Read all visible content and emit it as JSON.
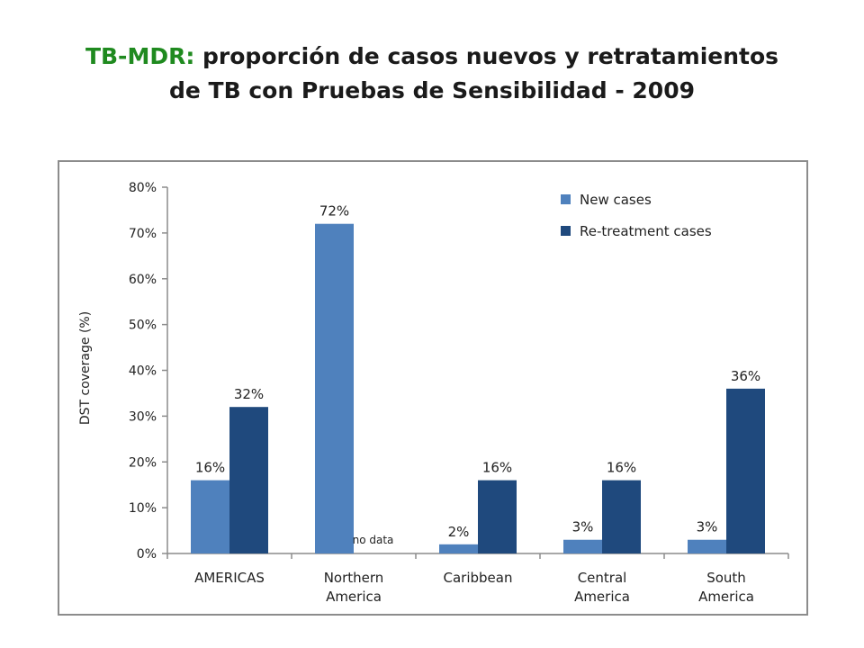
{
  "title": {
    "prefix": "TB-MDR:",
    "line1": " proporción de casos nuevos y retratamientos",
    "line2": "de TB con Pruebas de Sensibilidad - 2009"
  },
  "colors": {
    "title_accent": "#1f8a1f",
    "new_cases": "#4f81bd",
    "retreatment_cases": "#1f497d"
  },
  "chart_data": {
    "type": "bar",
    "title": "",
    "xlabel": "",
    "ylabel": "DST coverage (%)",
    "ylim": [
      0,
      80
    ],
    "y_ticks": [
      "0%",
      "10%",
      "20%",
      "30%",
      "40%",
      "50%",
      "60%",
      "70%",
      "80%"
    ],
    "categories": [
      [
        "AMERICAS"
      ],
      [
        "Northern",
        "America"
      ],
      [
        "Caribbean"
      ],
      [
        "Central",
        "America"
      ],
      [
        "South",
        "America"
      ]
    ],
    "series": [
      {
        "name": "New cases",
        "values": [
          16,
          72,
          2,
          3,
          3
        ],
        "labels": [
          "16%",
          "72%",
          "2%",
          "3%",
          "3%"
        ]
      },
      {
        "name": "Re-treatment cases",
        "values": [
          32,
          null,
          16,
          16,
          36
        ],
        "labels": [
          "32%",
          "no data",
          "16%",
          "16%",
          "36%"
        ]
      }
    ],
    "legend_position": "top-right",
    "grid": false
  }
}
